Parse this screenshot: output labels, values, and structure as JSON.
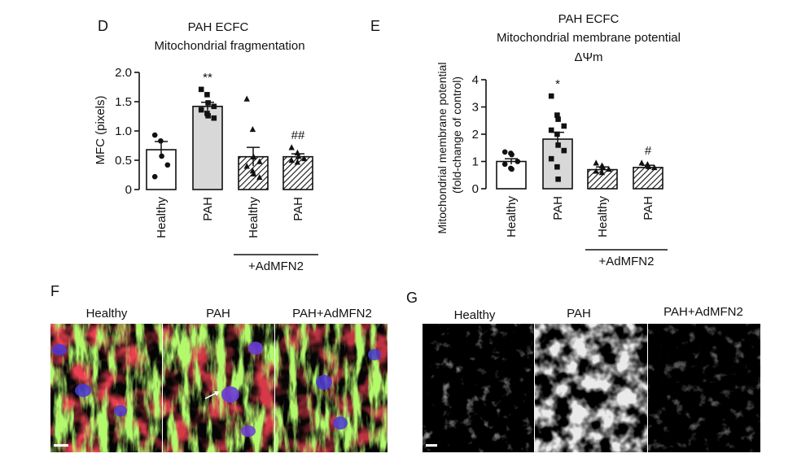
{
  "chart_data": [
    {
      "type": "bar",
      "panel_letter": "D",
      "title": "PAH ECFC",
      "subtitle": "Mitochondrial fragmentation",
      "ylabel": "MFC (pixels)",
      "ylim": [
        0,
        2.0
      ],
      "yticks": [
        "0",
        "0.5",
        "1.0",
        "1.5",
        "2.0"
      ],
      "categories": [
        "Healthy",
        "PAH",
        "Healthy",
        "PAH"
      ],
      "group_label": "+AdMFN2",
      "values": [
        0.68,
        1.42,
        0.56,
        0.56
      ],
      "errors": [
        0.14,
        0.07,
        0.16,
        0.05
      ],
      "significance": [
        "",
        "**",
        "",
        "##"
      ],
      "bar_fills": [
        "white",
        "#d8d8d8",
        "hatch",
        "hatch"
      ],
      "markers": [
        "circle",
        "square",
        "triangle",
        "triangle"
      ],
      "points": [
        [
          0.93,
          0.83,
          0.57,
          0.42,
          0.22
        ],
        [
          1.71,
          1.62,
          1.48,
          1.42,
          1.36,
          1.3,
          1.26,
          1.22
        ],
        [
          1.55,
          1.03,
          0.56,
          0.48,
          0.4,
          0.32,
          0.27,
          0.21
        ],
        [
          0.72,
          0.63,
          0.57,
          0.53,
          0.5,
          0.47
        ]
      ]
    },
    {
      "type": "bar",
      "panel_letter": "E",
      "title": "PAH ECFC",
      "subtitle": "Mitochondrial membrane potential",
      "subtitle2": "ΔΨm",
      "ylabel": [
        "Mitochondrial membrane potential",
        "(fold-change of control)"
      ],
      "ylim": [
        0,
        4
      ],
      "yticks": [
        "0",
        "1",
        "2",
        "3",
        "4"
      ],
      "categories": [
        "Healthy",
        "PAH",
        "Healthy",
        "PAH"
      ],
      "group_label": "+AdMFN2",
      "values": [
        1.0,
        1.82,
        0.7,
        0.78
      ],
      "errors": [
        0.1,
        0.25,
        0.1,
        0.08
      ],
      "significance": [
        "",
        "*",
        "",
        "#"
      ],
      "bar_fills": [
        "white",
        "#d8d8d8",
        "hatch",
        "hatch"
      ],
      "markers": [
        "circle",
        "square",
        "triangle",
        "triangle"
      ],
      "points": [
        [
          1.35,
          1.3,
          1.25,
          1.0,
          0.9,
          0.75,
          0.72
        ],
        [
          3.4,
          2.7,
          2.55,
          2.3,
          2.15,
          2.0,
          1.6,
          1.4,
          1.1,
          0.8,
          0.35
        ],
        [
          0.95,
          0.85,
          0.8,
          0.72,
          0.65,
          0.6
        ],
        [
          0.95,
          0.9,
          0.82,
          0.78
        ]
      ]
    }
  ],
  "panels_images": [
    {
      "panel_letter": "F",
      "labels": [
        "Healthy",
        "PAH",
        "PAH+AdMFN2"
      ],
      "style": "fluorescent"
    },
    {
      "panel_letter": "G",
      "labels": [
        "Healthy",
        "PAH",
        "PAH+AdMFN2"
      ],
      "style": "grayscale"
    }
  ]
}
